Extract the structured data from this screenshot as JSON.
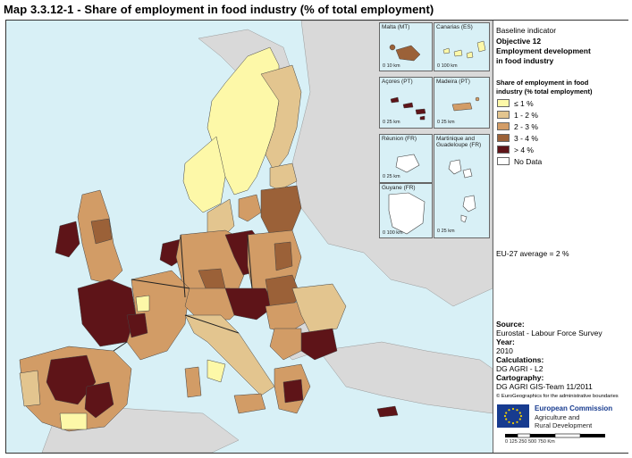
{
  "title": "Map 3.3.12-1 - Share of employment in food industry (% of total employment)",
  "panel": {
    "baseline": "Baseline indicator",
    "objective": "Objective 12",
    "indicator_line1": "Employment development",
    "indicator_line2": "in food industry",
    "legend_title_line1": "Share of employment in food",
    "legend_title_line2": "industry (% total employment)",
    "legend": [
      {
        "label": "≤ 1 %",
        "color": "#fdf8a8"
      },
      {
        "label": "1 - 2 %",
        "color": "#e3c58f"
      },
      {
        "label": "2 - 3 %",
        "color": "#d29c66"
      },
      {
        "label": "3 - 4 %",
        "color": "#9b6138"
      },
      {
        "label": "> 4 %",
        "color": "#5e1418"
      },
      {
        "label": "No Data",
        "color": "#ffffff"
      }
    ],
    "average": "EU-27 average = 2 %",
    "source_h": "Source:",
    "source_v": "Eurostat - Labour Force Survey",
    "year_h": "Year:",
    "year_v": "2010",
    "calc_h": "Calculations:",
    "calc_v": "DG AGRI - L2",
    "carto_h": "Cartography:",
    "carto_v": "DG AGRI GIS-Team 11/2011",
    "copyright": "© EuroGeographics for the administrative boundaries",
    "ec_name": "European Commission",
    "ec_sub1": "Agriculture and",
    "ec_sub2": "Rural Development",
    "scale": "0   125  250        500           750 Km"
  },
  "insets": {
    "malta": "Malta (MT)",
    "malta_scale": "0    10 km",
    "canarias": "Canarias (ES)",
    "canarias_scale": "0   100 km",
    "acores": "Açores (PT)",
    "acores_scale": "0 25 km",
    "madeira": "Madeira (PT)",
    "madeira_scale": "0 25 km",
    "reunion": "Réunion (FR)",
    "reunion_scale": "0 25 km",
    "martinique": "Martinique and Guadeloupe (FR)",
    "martinique_scale": "0 25 km",
    "guyane": "Guyane (FR)",
    "guyane_scale": "0 100 km"
  },
  "colors": {
    "sea": "#d8f0f6",
    "nonEU": "#d9d9d9",
    "border": "#333333"
  }
}
